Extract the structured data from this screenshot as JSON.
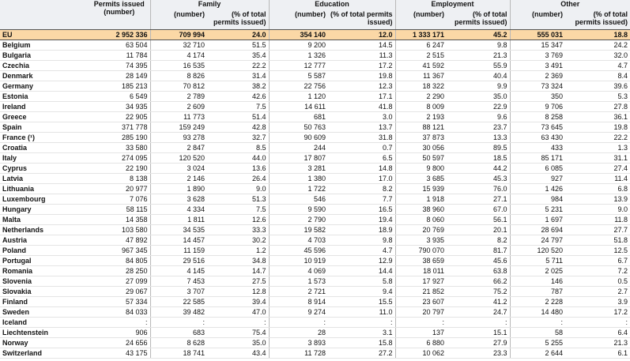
{
  "table": {
    "header": {
      "corner": "",
      "permits": "Permits issued (number)",
      "groups": [
        "Family",
        "Education",
        "Employment",
        "Other"
      ],
      "subheaders": [
        "(number)",
        "(% of total permits issued)"
      ]
    },
    "rows": [
      [
        "EU",
        "2 952 336",
        "709 994",
        "24.0",
        "354 140",
        "12.0",
        "1 333 171",
        "45.2",
        "555 031",
        "18.8"
      ],
      [
        "Belgium",
        "63 504",
        "32 710",
        "51.5",
        "9 200",
        "14.5",
        "6 247",
        "9.8",
        "15 347",
        "24.2"
      ],
      [
        "Bulgaria",
        "11 784",
        "4 174",
        "35.4",
        "1 326",
        "11.3",
        "2 515",
        "21.3",
        "3 769",
        "32.0"
      ],
      [
        "Czechia",
        "74 395",
        "16 535",
        "22.2",
        "12 777",
        "17.2",
        "41 592",
        "55.9",
        "3 491",
        "4.7"
      ],
      [
        "Denmark",
        "28 149",
        "8 826",
        "31.4",
        "5 587",
        "19.8",
        "11 367",
        "40.4",
        "2 369",
        "8.4"
      ],
      [
        "Germany",
        "185 213",
        "70 812",
        "38.2",
        "22 756",
        "12.3",
        "18 322",
        "9.9",
        "73 324",
        "39.6"
      ],
      [
        "Estonia",
        "6 549",
        "2 789",
        "42.6",
        "1 120",
        "17.1",
        "2 290",
        "35.0",
        "350",
        "5.3"
      ],
      [
        "Ireland",
        "34 935",
        "2 609",
        "7.5",
        "14 611",
        "41.8",
        "8 009",
        "22.9",
        "9 706",
        "27.8"
      ],
      [
        "Greece",
        "22 905",
        "11 773",
        "51.4",
        "681",
        "3.0",
        "2 193",
        "9.6",
        "8 258",
        "36.1"
      ],
      [
        "Spain",
        "371 778",
        "159 249",
        "42.8",
        "50 763",
        "13.7",
        "88 121",
        "23.7",
        "73 645",
        "19.8"
      ],
      [
        "France (¹)",
        "285 190",
        "93 278",
        "32.7",
        "90 609",
        "31.8",
        "37 873",
        "13.3",
        "63 430",
        "22.2"
      ],
      [
        "Croatia",
        "33 580",
        "2 847",
        "8.5",
        "244",
        "0.7",
        "30 056",
        "89.5",
        "433",
        "1.3"
      ],
      [
        "Italy",
        "274 095",
        "120 520",
        "44.0",
        "17 807",
        "6.5",
        "50 597",
        "18.5",
        "85 171",
        "31.1"
      ],
      [
        "Cyprus",
        "22 190",
        "3 024",
        "13.6",
        "3 281",
        "14.8",
        "9 800",
        "44.2",
        "6 085",
        "27.4"
      ],
      [
        "Latvia",
        "8 138",
        "2 146",
        "26.4",
        "1 380",
        "17.0",
        "3 685",
        "45.3",
        "927",
        "11.4"
      ],
      [
        "Lithuania",
        "20 977",
        "1 890",
        "9.0",
        "1 722",
        "8.2",
        "15 939",
        "76.0",
        "1 426",
        "6.8"
      ],
      [
        "Luxembourg",
        "7 076",
        "3 628",
        "51.3",
        "546",
        "7.7",
        "1 918",
        "27.1",
        "984",
        "13.9"
      ],
      [
        "Hungary",
        "58 115",
        "4 334",
        "7.5",
        "9 590",
        "16.5",
        "38 960",
        "67.0",
        "5 231",
        "9.0"
      ],
      [
        "Malta",
        "14 358",
        "1 811",
        "12.6",
        "2 790",
        "19.4",
        "8 060",
        "56.1",
        "1 697",
        "11.8"
      ],
      [
        "Netherlands",
        "103 580",
        "34 535",
        "33.3",
        "19 582",
        "18.9",
        "20 769",
        "20.1",
        "28 694",
        "27.7"
      ],
      [
        "Austria",
        "47 892",
        "14 457",
        "30.2",
        "4 703",
        "9.8",
        "3 935",
        "8.2",
        "24 797",
        "51.8"
      ],
      [
        "Poland",
        "967 345",
        "11 159",
        "1.2",
        "45 596",
        "4.7",
        "790 070",
        "81.7",
        "120 520",
        "12.5"
      ],
      [
        "Portugal",
        "84 805",
        "29 516",
        "34.8",
        "10 919",
        "12.9",
        "38 659",
        "45.6",
        "5 711",
        "6.7"
      ],
      [
        "Romania",
        "28 250",
        "4 145",
        "14.7",
        "4 069",
        "14.4",
        "18 011",
        "63.8",
        "2 025",
        "7.2"
      ],
      [
        "Slovenia",
        "27 099",
        "7 453",
        "27.5",
        "1 573",
        "5.8",
        "17 927",
        "66.2",
        "146",
        "0.5"
      ],
      [
        "Slovakia",
        "29 067",
        "3 707",
        "12.8",
        "2 721",
        "9.4",
        "21 852",
        "75.2",
        "787",
        "2.7"
      ],
      [
        "Finland",
        "57 334",
        "22 585",
        "39.4",
        "8 914",
        "15.5",
        "23 607",
        "41.2",
        "2 228",
        "3.9"
      ],
      [
        "Sweden",
        "84 033",
        "39 482",
        "47.0",
        "9 274",
        "11.0",
        "20 797",
        "24.7",
        "14 480",
        "17.2"
      ],
      [
        "Iceland",
        ":",
        ":",
        ":",
        ":",
        ":",
        ":",
        ":",
        ":",
        ":"
      ],
      [
        "Liechtenstein",
        "906",
        "683",
        "75.4",
        "28",
        "3.1",
        "137",
        "15.1",
        "58",
        "6.4"
      ],
      [
        "Norway",
        "24 656",
        "8 628",
        "35.0",
        "3 893",
        "15.8",
        "6 880",
        "27.9",
        "5 255",
        "21.3"
      ],
      [
        "Switzerland",
        "43 175",
        "18 741",
        "43.4",
        "11 728",
        "27.2",
        "10 062",
        "23.3",
        "2 644",
        "6.1"
      ]
    ]
  }
}
